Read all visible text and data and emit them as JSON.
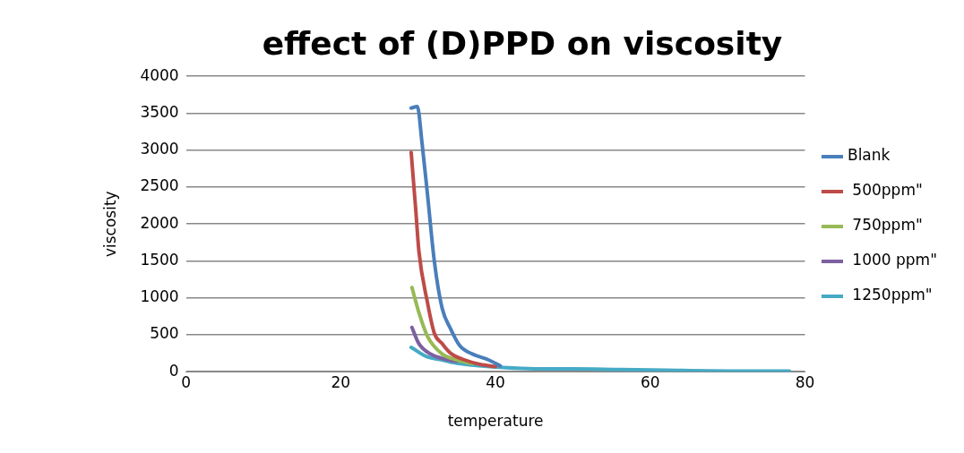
{
  "chart_data": {
    "type": "line",
    "title": "effect of (D)PPD on viscosity",
    "xlabel": "temperature",
    "ylabel": "viscosity",
    "xlim": [
      0,
      80
    ],
    "xticks": [
      0,
      20,
      40,
      60,
      80
    ],
    "ylim": [
      0,
      4000
    ],
    "yticks": [
      0,
      500,
      1000,
      1500,
      2000,
      2500,
      3000,
      3500,
      4000
    ],
    "grid": "y",
    "legend": "right",
    "marker": "none",
    "line_style": "solid",
    "series": [
      {
        "name": "Blank",
        "color": "#4a7ebb",
        "x": [
          29.1,
          29.9,
          30.5,
          31.2,
          32.1,
          33.1,
          34.2,
          35.4,
          37,
          39.1,
          40.6
        ],
        "values": [
          3570,
          3590,
          3100,
          2410,
          1490,
          860,
          580,
          350,
          240,
          160,
          80
        ]
      },
      {
        "name": " 500ppm\"",
        "color": "#be4b48",
        "x": [
          29.1,
          29.7,
          30.1,
          31.2,
          32.1,
          33.1,
          34.2,
          36,
          38,
          40
        ],
        "values": [
          2970,
          2180,
          1630,
          940,
          520,
          380,
          250,
          160,
          100,
          70
        ]
      },
      {
        "name": " 750ppm\"",
        "color": "#98b954",
        "x": [
          29.2,
          30.1,
          31.2,
          33.1,
          35,
          37
        ],
        "values": [
          1140,
          800,
          480,
          240,
          160,
          110
        ]
      },
      {
        "name": " 1000 ppm\"",
        "color": "#7d60a0",
        "x": [
          29.2,
          30.1,
          31.6,
          33.1,
          35
        ],
        "values": [
          600,
          380,
          240,
          180,
          140
        ]
      },
      {
        "name": " 1250ppm\"",
        "color": "#46aac5",
        "x": [
          29.1,
          31.2,
          33.1,
          34.2,
          37,
          40.6,
          45,
          50,
          56,
          62,
          70,
          78
        ],
        "values": [
          330,
          200,
          160,
          130,
          90,
          60,
          40,
          40,
          30,
          20,
          10,
          10
        ]
      }
    ]
  }
}
